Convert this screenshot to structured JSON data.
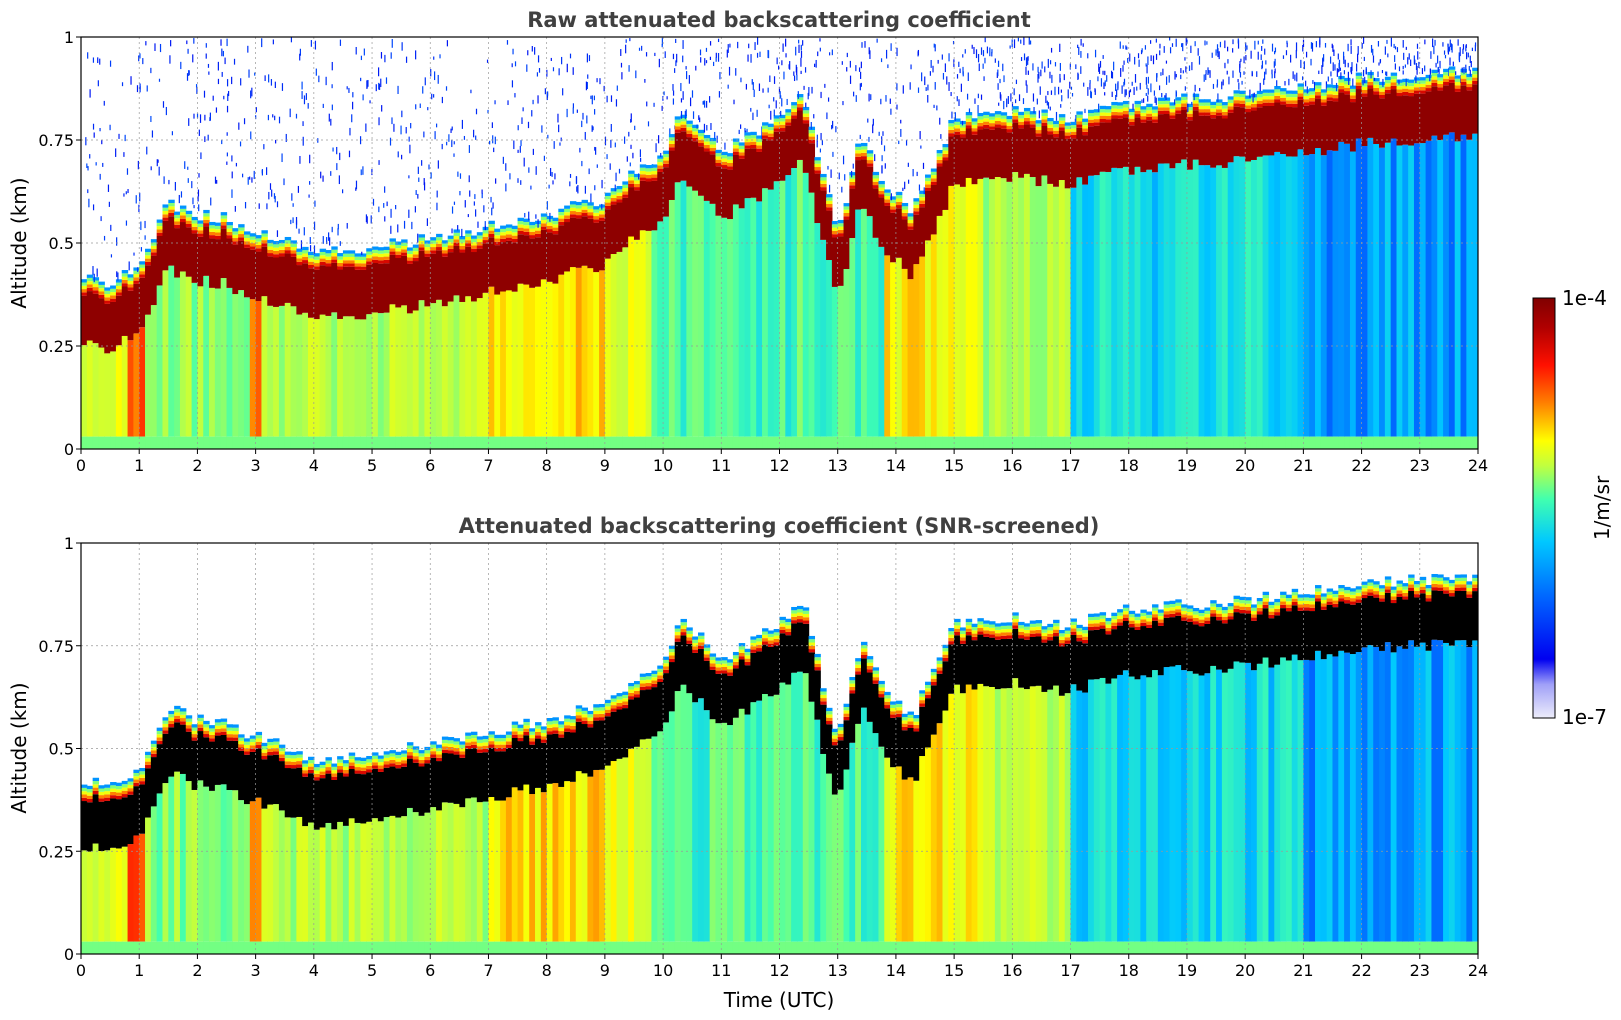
{
  "chart_data": [
    {
      "type": "heatmap",
      "title": "Raw attenuated backscattering coefficient",
      "xlabel": "",
      "ylabel": "Altitude (km)",
      "xlim": [
        0,
        24
      ],
      "ylim": [
        0,
        1
      ],
      "x_ticks": [
        "0",
        "1",
        "2",
        "3",
        "4",
        "5",
        "6",
        "7",
        "8",
        "9",
        "10",
        "11",
        "12",
        "13",
        "14",
        "15",
        "16",
        "17",
        "18",
        "19",
        "20",
        "21",
        "22",
        "23",
        "24"
      ],
      "y_ticks": [
        "0",
        "0.25",
        "0.5",
        "0.75",
        "1"
      ],
      "grid": true,
      "cloud_base_km": {
        "time_h": [
          0,
          0.5,
          1,
          1.5,
          2,
          2.5,
          3,
          3.5,
          4,
          5,
          6,
          7,
          8,
          8.5,
          9,
          9.5,
          10,
          10.3,
          11,
          12,
          12.4,
          13,
          13.4,
          13.8,
          14.3,
          15,
          16,
          17,
          18,
          19,
          20,
          21,
          22,
          23,
          24
        ],
        "altitude_km": [
          0.29,
          0.26,
          0.3,
          0.46,
          0.43,
          0.42,
          0.39,
          0.37,
          0.33,
          0.35,
          0.37,
          0.4,
          0.43,
          0.45,
          0.47,
          0.53,
          0.57,
          0.68,
          0.58,
          0.66,
          0.72,
          0.38,
          0.62,
          0.5,
          0.44,
          0.66,
          0.68,
          0.66,
          0.7,
          0.71,
          0.72,
          0.74,
          0.76,
          0.77,
          0.78
        ]
      },
      "sky_noise": true
    },
    {
      "type": "heatmap",
      "title": "Attenuated backscattering coefficient (SNR-screened)",
      "xlabel": "Time (UTC)",
      "ylabel": "Altitude (km)",
      "xlim": [
        0,
        24
      ],
      "ylim": [
        0,
        1
      ],
      "x_ticks": [
        "0",
        "1",
        "2",
        "3",
        "4",
        "5",
        "6",
        "7",
        "8",
        "9",
        "10",
        "11",
        "12",
        "13",
        "14",
        "15",
        "16",
        "17",
        "18",
        "19",
        "20",
        "21",
        "22",
        "23",
        "24"
      ],
      "y_ticks": [
        "0",
        "0.25",
        "0.5",
        "0.75",
        "1"
      ],
      "grid": true,
      "cloud_base_km": {
        "time_h": [
          0,
          0.5,
          1,
          1.5,
          2,
          2.5,
          3,
          3.5,
          4,
          5,
          6,
          7,
          8,
          8.5,
          9,
          9.5,
          10,
          10.3,
          11,
          12,
          12.4,
          13,
          13.4,
          13.8,
          14.3,
          15,
          16,
          17,
          18,
          19,
          20,
          21,
          22,
          23,
          24
        ],
        "altitude_km": [
          0.29,
          0.26,
          0.3,
          0.46,
          0.43,
          0.42,
          0.39,
          0.37,
          0.33,
          0.35,
          0.37,
          0.4,
          0.43,
          0.45,
          0.47,
          0.53,
          0.57,
          0.68,
          0.58,
          0.66,
          0.72,
          0.38,
          0.62,
          0.5,
          0.44,
          0.66,
          0.68,
          0.66,
          0.7,
          0.71,
          0.72,
          0.74,
          0.76,
          0.77,
          0.78
        ]
      },
      "saturated_color": "#000000",
      "sky_noise": false
    }
  ],
  "colorbar": {
    "max_label": "1e-4",
    "min_label": "1e-7",
    "unit_label": "1/m/sr",
    "colormap": [
      "#ededfa",
      "#0000f0",
      "#0060ff",
      "#00c8ff",
      "#40ffb0",
      "#c0ff40",
      "#ffff00",
      "#ff8000",
      "#ff1000",
      "#b00000",
      "#800000"
    ]
  }
}
